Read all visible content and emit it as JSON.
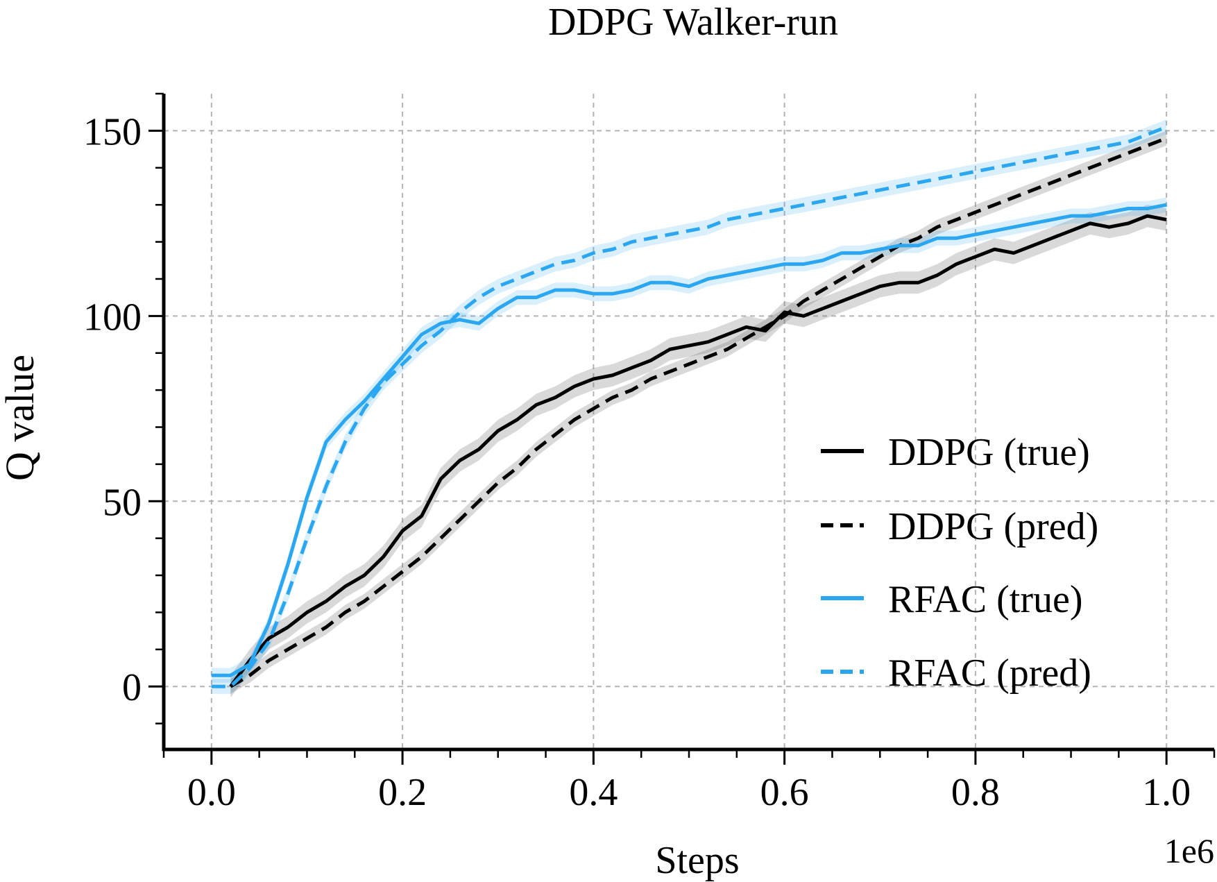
{
  "chart_data": {
    "type": "line",
    "title": "DDPG Walker-run",
    "xlabel": "Steps",
    "ylabel": "Q value",
    "x_scale_label": "1e6",
    "xlim": [
      -0.05,
      1.05
    ],
    "ylim": [
      -17,
      160
    ],
    "x_ticks": [
      0.0,
      0.2,
      0.4,
      0.6,
      0.8,
      1.0
    ],
    "x_tick_labels": [
      "0.0",
      "0.2",
      "0.4",
      "0.6",
      "0.8",
      "1.0"
    ],
    "y_ticks": [
      0,
      50,
      100,
      150
    ],
    "y_tick_labels": [
      "0",
      "50",
      "100",
      "150"
    ],
    "grid": true,
    "legend_position": "right",
    "series": [
      {
        "name": "DDPG (true)",
        "color": "#000000",
        "dash": "solid",
        "band": 3,
        "x": [
          0.02,
          0.04,
          0.06,
          0.08,
          0.1,
          0.12,
          0.14,
          0.16,
          0.18,
          0.2,
          0.22,
          0.24,
          0.26,
          0.28,
          0.3,
          0.32,
          0.34,
          0.36,
          0.38,
          0.4,
          0.42,
          0.44,
          0.46,
          0.48,
          0.5,
          0.52,
          0.54,
          0.56,
          0.58,
          0.6,
          0.62,
          0.64,
          0.66,
          0.68,
          0.7,
          0.72,
          0.74,
          0.76,
          0.78,
          0.8,
          0.82,
          0.84,
          0.86,
          0.88,
          0.9,
          0.92,
          0.94,
          0.96,
          0.98,
          1.0
        ],
        "y": [
          0,
          7,
          13,
          16,
          20,
          23,
          27,
          30,
          35,
          42,
          46,
          56,
          61,
          64,
          69,
          72,
          76,
          78,
          81,
          83,
          84,
          86,
          88,
          91,
          92,
          93,
          95,
          97,
          96,
          101,
          100,
          102,
          104,
          106,
          108,
          109,
          109,
          111,
          114,
          116,
          118,
          117,
          119,
          121,
          123,
          125,
          124,
          125,
          127,
          126
        ]
      },
      {
        "name": "DDPG (pred)",
        "color": "#000000",
        "dash": "dashed",
        "band": 2,
        "x": [
          0.02,
          0.04,
          0.06,
          0.08,
          0.1,
          0.12,
          0.14,
          0.16,
          0.18,
          0.2,
          0.22,
          0.24,
          0.26,
          0.28,
          0.3,
          0.32,
          0.34,
          0.36,
          0.38,
          0.4,
          0.42,
          0.44,
          0.46,
          0.48,
          0.5,
          0.52,
          0.54,
          0.56,
          0.58,
          0.6,
          0.62,
          0.64,
          0.66,
          0.68,
          0.7,
          0.72,
          0.74,
          0.76,
          0.78,
          0.8,
          0.82,
          0.84,
          0.86,
          0.88,
          0.9,
          0.92,
          0.94,
          0.96,
          0.98,
          1.0
        ],
        "y": [
          0,
          3,
          7,
          10,
          13,
          16,
          20,
          23,
          27,
          31,
          35,
          40,
          45,
          50,
          55,
          59,
          64,
          68,
          72,
          75,
          78,
          80,
          83,
          85,
          87,
          89,
          91,
          94,
          97,
          100,
          104,
          107,
          110,
          113,
          116,
          119,
          121,
          124,
          126,
          128,
          130,
          132,
          134,
          136,
          138,
          140,
          142,
          144,
          146,
          148
        ]
      },
      {
        "name": "RFAC (true)",
        "color": "#2aa7f0",
        "dash": "solid",
        "band": 2,
        "x": [
          0.0,
          0.02,
          0.04,
          0.06,
          0.08,
          0.1,
          0.12,
          0.14,
          0.16,
          0.18,
          0.2,
          0.22,
          0.24,
          0.26,
          0.28,
          0.3,
          0.32,
          0.34,
          0.36,
          0.38,
          0.4,
          0.42,
          0.44,
          0.46,
          0.48,
          0.5,
          0.52,
          0.54,
          0.56,
          0.58,
          0.6,
          0.62,
          0.64,
          0.66,
          0.68,
          0.7,
          0.72,
          0.74,
          0.76,
          0.78,
          0.8,
          0.82,
          0.84,
          0.86,
          0.88,
          0.9,
          0.92,
          0.94,
          0.96,
          0.98,
          1.0
        ],
        "y": [
          3,
          3,
          6,
          17,
          33,
          51,
          66,
          72,
          77,
          83,
          89,
          95,
          98,
          99,
          98,
          102,
          105,
          105,
          107,
          107,
          106,
          106,
          107,
          109,
          109,
          108,
          110,
          111,
          112,
          113,
          114,
          114,
          115,
          117,
          117,
          118,
          119,
          119,
          121,
          121,
          122,
          123,
          124,
          125,
          126,
          127,
          127,
          128,
          129,
          129,
          130
        ]
      },
      {
        "name": "RFAC (pred)",
        "color": "#2aa7f0",
        "dash": "dashed",
        "band": 2,
        "x": [
          0.0,
          0.02,
          0.04,
          0.06,
          0.08,
          0.1,
          0.12,
          0.14,
          0.16,
          0.18,
          0.2,
          0.22,
          0.24,
          0.26,
          0.28,
          0.3,
          0.32,
          0.34,
          0.36,
          0.38,
          0.4,
          0.42,
          0.44,
          0.46,
          0.48,
          0.5,
          0.52,
          0.54,
          0.56,
          0.58,
          0.6,
          0.62,
          0.64,
          0.66,
          0.68,
          0.7,
          0.72,
          0.74,
          0.76,
          0.78,
          0.8,
          0.82,
          0.84,
          0.86,
          0.88,
          0.9,
          0.92,
          0.94,
          0.96,
          0.98,
          1.0
        ],
        "y": [
          0,
          0,
          5,
          12,
          25,
          40,
          54,
          66,
          75,
          82,
          87,
          92,
          96,
          101,
          105,
          108,
          110,
          112,
          114,
          115,
          117,
          118,
          120,
          121,
          122,
          123,
          124,
          126,
          127,
          128,
          129,
          130,
          131,
          132,
          133,
          134,
          135,
          136,
          137,
          138,
          139,
          140,
          141,
          142,
          143,
          144,
          145,
          146,
          147,
          149,
          151
        ]
      }
    ]
  }
}
